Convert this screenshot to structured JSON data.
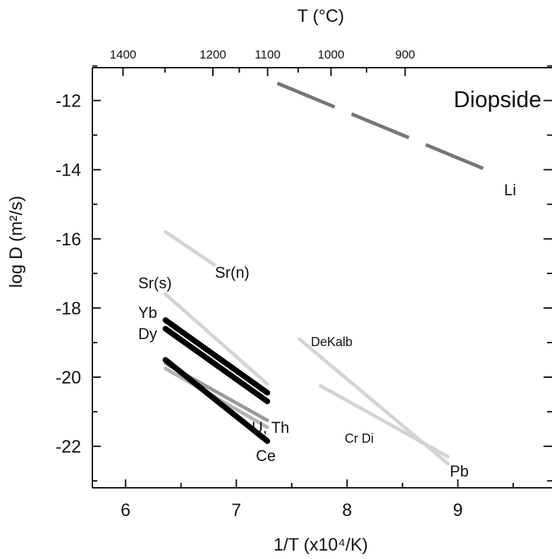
{
  "chart_data": {
    "type": "line",
    "title": "Diopside",
    "xlabel": "1/T (x10⁴/K)",
    "ylabel": "log D (m²/s)",
    "top_xlabel": "T (°C)",
    "xlim": [
      5.7,
      9.85
    ],
    "ylim": [
      -23.2,
      -11.05
    ],
    "x_ticks": [
      6,
      7,
      8,
      9
    ],
    "x_tick_labels": [
      "6",
      "7",
      "8",
      "9"
    ],
    "y_ticks": [
      -12,
      -14,
      -16,
      -18,
      -20,
      -22
    ],
    "y_tick_labels": [
      "-12",
      "-14",
      "-16",
      "-18",
      "-20",
      "-22"
    ],
    "top_ticks_T_celsius": [
      1400,
      1200,
      1100,
      1000,
      900
    ],
    "top_tick_labels": [
      "1400",
      "1200",
      "1100",
      "1000",
      "900"
    ],
    "grid": false,
    "legend": "none",
    "series": [
      {
        "name": "Li",
        "label": "Li",
        "color": "#76767a",
        "dashed": true,
        "width": 5,
        "x": [
          7.37,
          9.33
        ],
        "y": [
          -11.5,
          -14.1
        ]
      },
      {
        "name": "Sr(n)",
        "label": "Sr(n)",
        "color": "#d4d4d4",
        "width": 5,
        "x": [
          6.36,
          6.8
        ],
        "y": [
          -15.8,
          -16.75
        ]
      },
      {
        "name": "Sr(s)",
        "label": "Sr(s)",
        "color": "#d4d4d4",
        "width": 5,
        "x": [
          6.36,
          7.28
        ],
        "y": [
          -17.6,
          -20.2
        ]
      },
      {
        "name": "Yb",
        "label": "Yb",
        "color": "#000000",
        "width": 8,
        "x": [
          6.36,
          7.28
        ],
        "y": [
          -18.35,
          -20.45
        ]
      },
      {
        "name": "Dy",
        "label": "Dy",
        "color": "#000000",
        "width": 8,
        "x": [
          6.36,
          7.28
        ],
        "y": [
          -18.6,
          -20.7
        ]
      },
      {
        "name": "U",
        "label": "U, Th",
        "color": "#9a9a9a",
        "width": 5,
        "x": [
          6.36,
          7.28
        ],
        "y": [
          -19.6,
          -21.25
        ]
      },
      {
        "name": "Th",
        "label": "",
        "color": "#b4b4b4",
        "width": 5,
        "x": [
          6.36,
          7.28
        ],
        "y": [
          -19.75,
          -21.45
        ]
      },
      {
        "name": "Ce",
        "label": "Ce",
        "color": "#000000",
        "width": 8,
        "x": [
          6.36,
          7.28
        ],
        "y": [
          -19.5,
          -21.85
        ]
      },
      {
        "name": "DeKalb",
        "label": "DeKalb",
        "color": "#d4d4d4",
        "width": 5,
        "x": [
          7.57,
          8.91
        ],
        "y": [
          -18.9,
          -22.5
        ]
      },
      {
        "name": "Cr Di",
        "label": "Cr Di",
        "color": "#d4d4d4",
        "width": 5,
        "x": [
          7.76,
          8.91
        ],
        "y": [
          -20.25,
          -22.3
        ]
      }
    ],
    "annotations": [
      "Li",
      "Sr(n)",
      "Sr(s)",
      "Yb",
      "Dy",
      "U, Th",
      "Ce",
      "DeKalb",
      "Cr Di",
      "Pb"
    ]
  }
}
